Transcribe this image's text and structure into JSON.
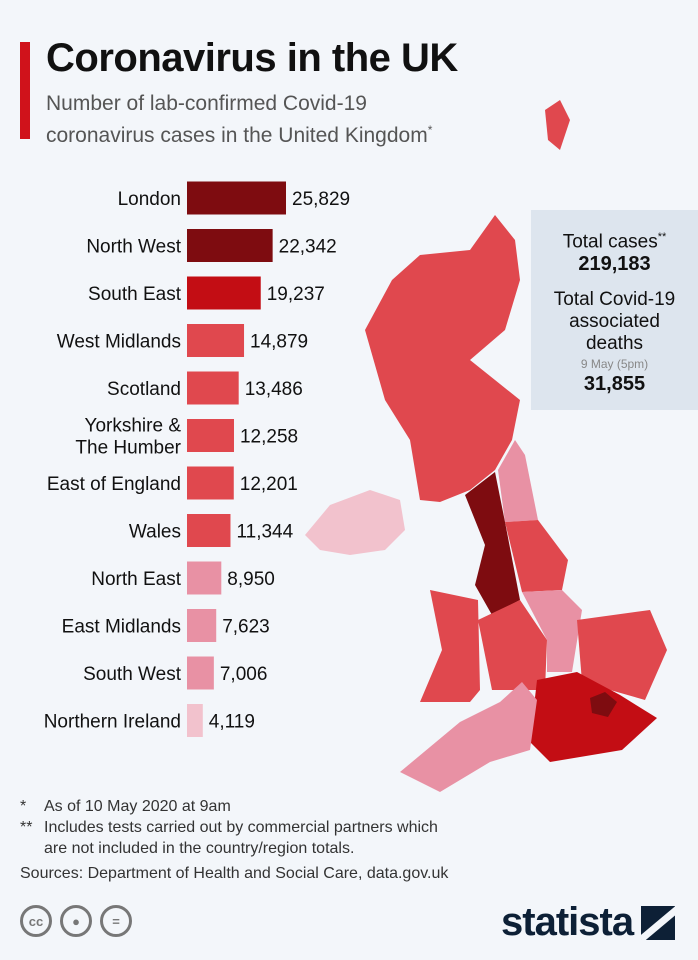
{
  "header": {
    "title": "Coronavirus in the UK",
    "subtitle_line1": "Number of lab-confirmed Covid-19",
    "subtitle_line2": "coronavirus cases in the United Kingdom",
    "subtitle_mark": "*"
  },
  "totals": {
    "cases_label": "Total cases",
    "cases_mark": "**",
    "cases_value": "219,183",
    "deaths_label_1": "Total Covid-19",
    "deaths_label_2": "associated",
    "deaths_label_3": "deaths",
    "deaths_date": "9 May (5pm)",
    "deaths_value": "31,855"
  },
  "chart_data": {
    "type": "bar",
    "orientation": "horizontal",
    "title": "Coronavirus in the UK",
    "categories": [
      "London",
      "North West",
      "South East",
      "West Midlands",
      "Scotland",
      "Yorkshire & The Humber",
      "East of England",
      "Wales",
      "North East",
      "East Midlands",
      "South West",
      "Northern Ireland"
    ],
    "values": [
      25829,
      22342,
      19237,
      14879,
      13486,
      12258,
      12201,
      11344,
      8950,
      7623,
      7006,
      4119
    ],
    "labels": [
      "25,829",
      "22,342",
      "19,237",
      "14,879",
      "13,486",
      "12,258",
      "12,201",
      "11,344",
      "8,950",
      "7,623",
      "7,006",
      "4,119"
    ],
    "colors": [
      "#7e0c10",
      "#7e0c10",
      "#c30d14",
      "#e0484e",
      "#e0484e",
      "#e0484e",
      "#e0484e",
      "#e0484e",
      "#e891a4",
      "#e891a4",
      "#e891a4",
      "#f2c2cd"
    ]
  },
  "notes": {
    "n1_mark": "*",
    "n1": "As of 10 May 2020 at 9am",
    "n2_mark": "**",
    "n2_line1": "Includes tests carried out by commercial partners which",
    "n2_line2": "are not included in the country/region totals.",
    "sources": "Sources: Department of Health and Social Care, data.gov.uk"
  },
  "footer": {
    "logo": "statista",
    "cc_icons": [
      "cc-icon",
      "by-icon",
      "nd-icon"
    ]
  }
}
